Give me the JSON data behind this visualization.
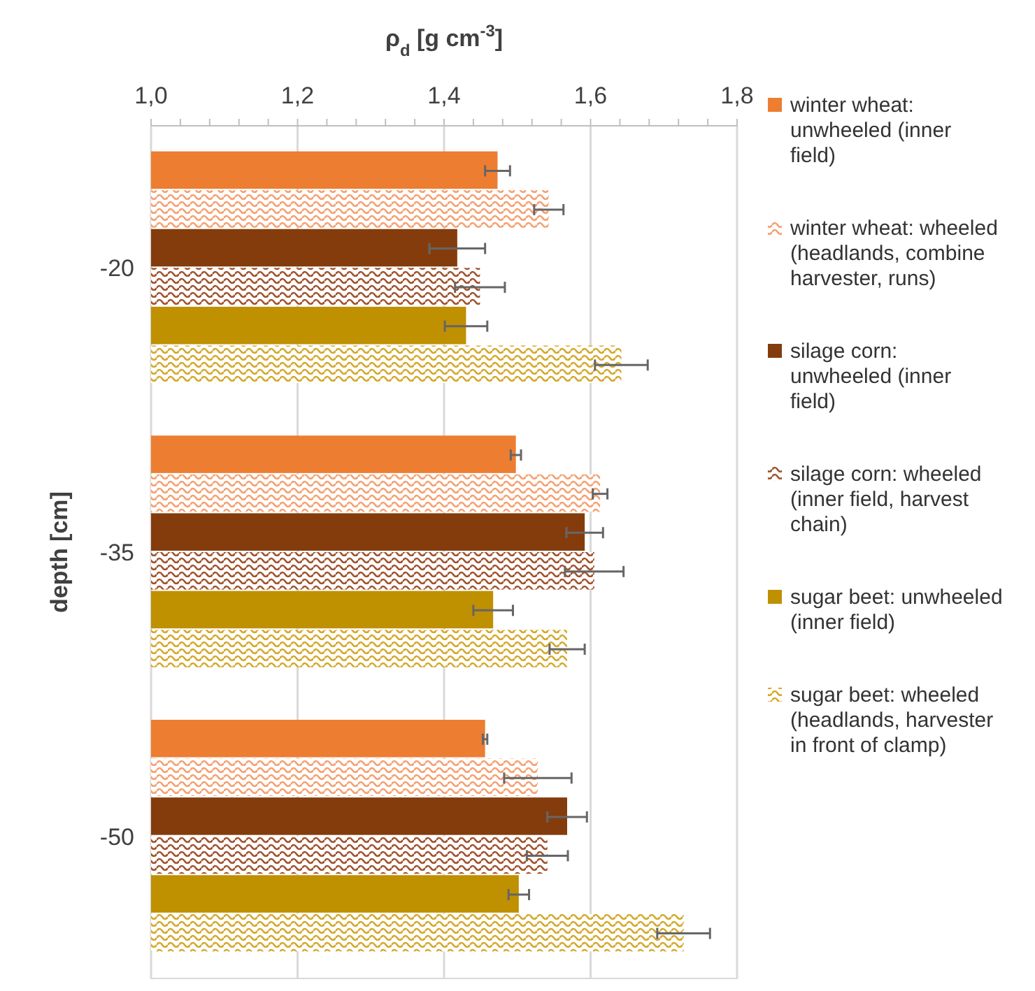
{
  "chart_data": {
    "type": "bar",
    "orientation": "horizontal",
    "xlabel": "ρ$_{d}$ [g cm$^{-3}$]",
    "ylabel": "depth [cm]",
    "categories": [
      "-20",
      "-35",
      "-50"
    ],
    "series": [
      {
        "name": "winter wheat: unwheeled (inner field)",
        "color": "#ed7d31",
        "values": [
          1.473,
          1.498,
          1.456
        ],
        "errors": [
          0.017,
          0.007,
          0.003
        ]
      },
      {
        "name": "winter wheat: wheeled (headlands, combine harvester, runs)",
        "color": "#f4a070",
        "values": [
          1.543,
          1.613,
          1.528
        ],
        "errors": [
          0.02,
          0.01,
          0.046
        ]
      },
      {
        "name": "silage corn: unwheeled (inner field)",
        "color": "#843c0c",
        "values": [
          1.418,
          1.592,
          1.568
        ],
        "errors": [
          0.038,
          0.025,
          0.027
        ]
      },
      {
        "name": "silage corn: wheeled (inner field, harvest chain)",
        "color": "#a0522d",
        "values": [
          1.449,
          1.605,
          1.541
        ],
        "errors": [
          0.034,
          0.04,
          0.028
        ]
      },
      {
        "name": "sugar beet: unwheeled (inner field)",
        "color": "#bf9000",
        "values": [
          1.43,
          1.467,
          1.502
        ],
        "errors": [
          0.029,
          0.027,
          0.014
        ]
      },
      {
        "name": "sugar beet: wheeled (headlands, harvester in front of clamp)",
        "color": "#d4a82a",
        "values": [
          1.642,
          1.568,
          1.727
        ],
        "errors": [
          0.036,
          0.024,
          0.036
        ]
      }
    ],
    "xlim": [
      1.0,
      1.8
    ],
    "xticks": [
      {
        "value": 1.0,
        "label": "1,0"
      },
      {
        "value": 1.04,
        "label": null
      },
      {
        "value": 1.08,
        "label": null
      },
      {
        "value": 1.12,
        "label": null
      },
      {
        "value": 1.16,
        "label": null
      },
      {
        "value": 1.2,
        "label": "1,2"
      },
      {
        "value": 1.24,
        "label": null
      },
      {
        "value": 1.28,
        "label": null
      },
      {
        "value": 1.32,
        "label": null
      },
      {
        "value": 1.36,
        "label": null
      },
      {
        "value": 1.4,
        "label": "1,4"
      },
      {
        "value": 1.44,
        "label": null
      },
      {
        "value": 1.48,
        "label": null
      },
      {
        "value": 1.52,
        "label": null
      },
      {
        "value": 1.56,
        "label": null
      },
      {
        "value": 1.6,
        "label": "1,6"
      },
      {
        "value": 1.64,
        "label": null
      },
      {
        "value": 1.68,
        "label": null
      },
      {
        "value": 1.72,
        "label": null
      },
      {
        "value": 1.76,
        "label": null
      },
      {
        "value": 1.8,
        "label": "1,8"
      }
    ],
    "grid": "x",
    "legend": "right"
  }
}
